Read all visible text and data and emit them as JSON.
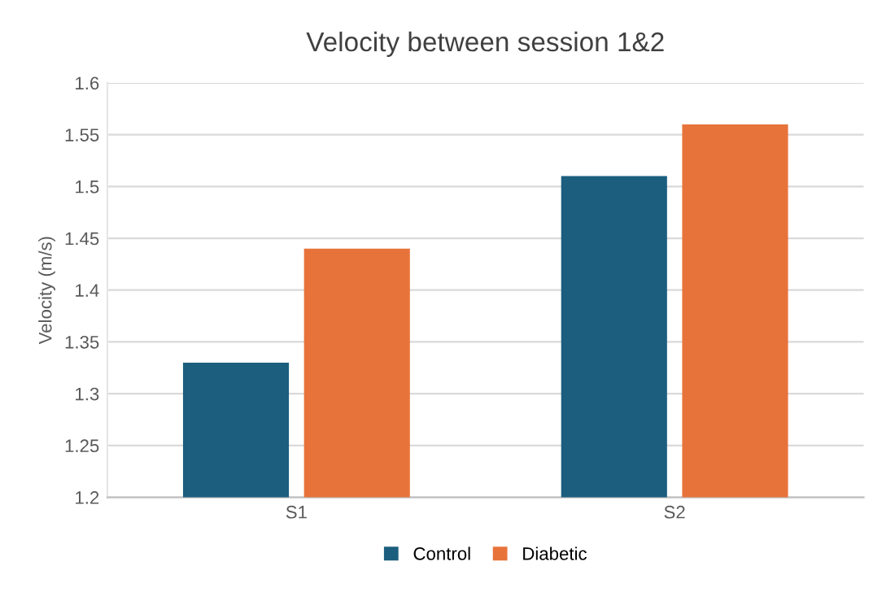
{
  "chart_data": {
    "type": "bar",
    "title": "Velocity between session 1&2",
    "ylabel": "Velocity (m/s)",
    "categories": [
      "S1",
      "S2"
    ],
    "series": [
      {
        "name": "Control",
        "color": "#1b5e7e",
        "values": [
          1.33,
          1.51
        ]
      },
      {
        "name": "Diabetic",
        "color": "#e8733a",
        "values": [
          1.44,
          1.56
        ]
      }
    ],
    "ylim": [
      1.2,
      1.6
    ],
    "yticks": [
      1.2,
      1.25,
      1.3,
      1.35,
      1.4,
      1.45,
      1.5,
      1.55,
      1.6
    ],
    "grid": "y",
    "legend": "bottom"
  }
}
